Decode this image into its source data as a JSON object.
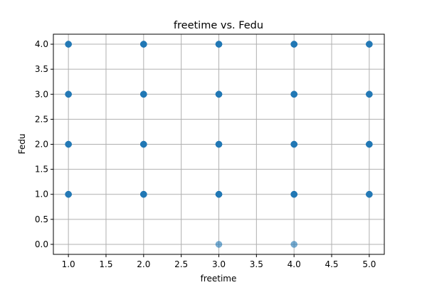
{
  "chart_data": {
    "type": "scatter",
    "title": "freetime vs. Fedu",
    "xlabel": "freetime",
    "ylabel": "Fedu",
    "xlim": [
      0.8,
      5.2
    ],
    "ylim": [
      -0.2,
      4.2
    ],
    "x_ticks": [
      "1.0",
      "1.5",
      "2.0",
      "2.5",
      "3.0",
      "3.5",
      "4.0",
      "4.5",
      "5.0"
    ],
    "y_ticks": [
      "0.0",
      "0.5",
      "1.0",
      "1.5",
      "2.0",
      "2.5",
      "3.0",
      "3.5",
      "4.0"
    ],
    "grid": true,
    "marker_color": "#1f77b4",
    "points": [
      {
        "x": 1,
        "y": 1,
        "n": 4
      },
      {
        "x": 1,
        "y": 2,
        "n": 4
      },
      {
        "x": 1,
        "y": 3,
        "n": 4
      },
      {
        "x": 1,
        "y": 4,
        "n": 4
      },
      {
        "x": 2,
        "y": 1,
        "n": 5
      },
      {
        "x": 2,
        "y": 2,
        "n": 5
      },
      {
        "x": 2,
        "y": 3,
        "n": 5
      },
      {
        "x": 2,
        "y": 4,
        "n": 5
      },
      {
        "x": 3,
        "y": 0,
        "n": 1
      },
      {
        "x": 3,
        "y": 1,
        "n": 5
      },
      {
        "x": 3,
        "y": 2,
        "n": 5
      },
      {
        "x": 3,
        "y": 3,
        "n": 5
      },
      {
        "x": 3,
        "y": 4,
        "n": 5
      },
      {
        "x": 4,
        "y": 0,
        "n": 1
      },
      {
        "x": 4,
        "y": 1,
        "n": 5
      },
      {
        "x": 4,
        "y": 2,
        "n": 5
      },
      {
        "x": 4,
        "y": 3,
        "n": 5
      },
      {
        "x": 4,
        "y": 4,
        "n": 5
      },
      {
        "x": 5,
        "y": 1,
        "n": 4
      },
      {
        "x": 5,
        "y": 2,
        "n": 5
      },
      {
        "x": 5,
        "y": 3,
        "n": 4
      },
      {
        "x": 5,
        "y": 4,
        "n": 4
      }
    ]
  }
}
